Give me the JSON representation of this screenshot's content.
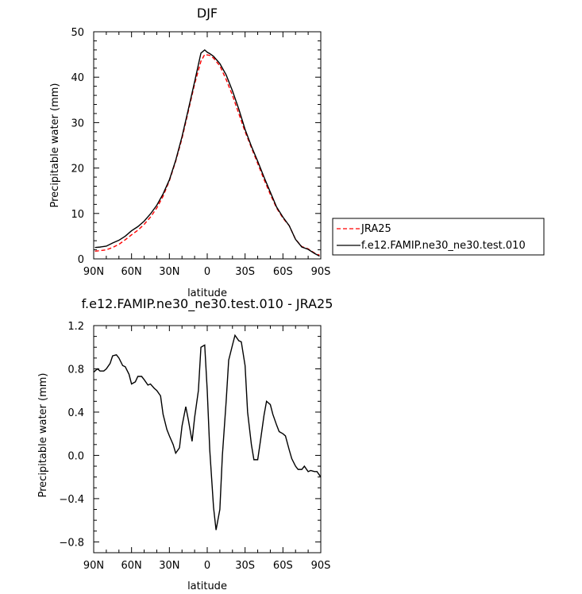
{
  "chart_data": [
    {
      "type": "line",
      "title": "DJF",
      "xlabel": "latitude",
      "ylabel": "Precipitable water (mm)",
      "x_ticks": [
        "90N",
        "60N",
        "30N",
        "0",
        "30S",
        "60S",
        "90S"
      ],
      "y_ticks": [
        "0",
        "10",
        "20",
        "30",
        "40",
        "50"
      ],
      "xlim": [
        -90,
        90
      ],
      "ylim": [
        0,
        50
      ],
      "legend_position": "right",
      "series": [
        {
          "name": "JRA25",
          "color": "#ff0000",
          "style": "dashed",
          "x": [
            -89,
            -85,
            -80,
            -75,
            -70,
            -65,
            -60,
            -55,
            -50,
            -45,
            -40,
            -35,
            -30,
            -25,
            -20,
            -15,
            -10,
            -5,
            -2,
            0,
            2,
            5,
            10,
            15,
            20,
            25,
            30,
            35,
            40,
            45,
            50,
            55,
            60,
            65,
            70,
            75,
            80,
            85,
            89
          ],
          "y": [
            1.7,
            1.8,
            2.0,
            2.5,
            3.2,
            4.2,
            5.3,
            6.3,
            7.6,
            9.2,
            11.2,
            13.8,
            17.2,
            21.5,
            26.5,
            32.5,
            38.5,
            43.5,
            45.0,
            44.9,
            44.8,
            44.2,
            42.5,
            39.5,
            36.0,
            32.0,
            28.0,
            24.5,
            21.0,
            17.5,
            14.2,
            11.2,
            9.0,
            7.3,
            4.3,
            2.7,
            2.2,
            1.3,
            0.8
          ]
        },
        {
          "name": "f.e12.FAMIP.ne30_ne30.test.010",
          "color": "#000000",
          "style": "solid",
          "x": [
            -89,
            -85,
            -80,
            -75,
            -70,
            -65,
            -60,
            -55,
            -50,
            -45,
            -40,
            -35,
            -30,
            -25,
            -20,
            -15,
            -10,
            -5,
            -2,
            0,
            2,
            5,
            10,
            15,
            20,
            25,
            30,
            35,
            40,
            45,
            50,
            55,
            60,
            65,
            70,
            75,
            80,
            85,
            89
          ],
          "y": [
            2.5,
            2.6,
            2.8,
            3.5,
            4.1,
            5.0,
            6.2,
            7.1,
            8.3,
            9.9,
            11.8,
            14.3,
            17.4,
            21.7,
            26.9,
            32.9,
            39.0,
            45.3,
            46.0,
            45.5,
            45.2,
            44.6,
            43.0,
            40.5,
            37.0,
            33.0,
            28.5,
            24.8,
            21.5,
            18.0,
            14.7,
            11.4,
            9.2,
            7.3,
            4.3,
            2.6,
            2.1,
            1.2,
            0.6
          ]
        }
      ]
    },
    {
      "type": "line",
      "title": "f.e12.FAMIP.ne30_ne30.test.010 - JRA25",
      "xlabel": "latitude",
      "ylabel": "Precipitable water (mm)",
      "x_ticks": [
        "90N",
        "60N",
        "30N",
        "0",
        "30S",
        "60S",
        "90S"
      ],
      "y_ticks": [
        "−0.8",
        "−0.4",
        "0.0",
        "0.4",
        "0.8",
        "1.2"
      ],
      "xlim": [
        -90,
        90
      ],
      "ylim": [
        -0.9,
        1.2
      ],
      "series": [
        {
          "color": "#000000",
          "style": "solid",
          "x": [
            -90,
            -87,
            -85,
            -82,
            -80,
            -77,
            -75,
            -72,
            -70,
            -67,
            -65,
            -62,
            -60,
            -57,
            -55,
            -52,
            -50,
            -47,
            -45,
            -42,
            -40,
            -37,
            -35,
            -32,
            -30,
            -27,
            -25,
            -22,
            -20,
            -17,
            -15,
            -12,
            -10,
            -7,
            -5,
            -2,
            0,
            2,
            5,
            7,
            10,
            12,
            15,
            17,
            20,
            22,
            25,
            27,
            30,
            32,
            35,
            37,
            40,
            42,
            45,
            47,
            50,
            52,
            55,
            57,
            60,
            62,
            65,
            67,
            70,
            72,
            75,
            77,
            80,
            82,
            85,
            87,
            90
          ],
          "y": [
            0.77,
            0.8,
            0.78,
            0.78,
            0.8,
            0.85,
            0.92,
            0.93,
            0.9,
            0.83,
            0.82,
            0.75,
            0.66,
            0.68,
            0.73,
            0.73,
            0.7,
            0.65,
            0.66,
            0.62,
            0.6,
            0.55,
            0.38,
            0.24,
            0.18,
            0.1,
            0.02,
            0.07,
            0.27,
            0.45,
            0.33,
            0.13,
            0.35,
            0.6,
            1.0,
            1.02,
            0.6,
            0.05,
            -0.48,
            -0.69,
            -0.5,
            0.0,
            0.5,
            0.88,
            1.02,
            1.11,
            1.06,
            1.05,
            0.83,
            0.4,
            0.1,
            -0.04,
            -0.04,
            0.12,
            0.37,
            0.5,
            0.47,
            0.38,
            0.28,
            0.22,
            0.2,
            0.18,
            0.05,
            -0.03,
            -0.1,
            -0.13,
            -0.13,
            -0.1,
            -0.15,
            -0.14,
            -0.15,
            -0.15,
            -0.2
          ]
        }
      ]
    }
  ]
}
